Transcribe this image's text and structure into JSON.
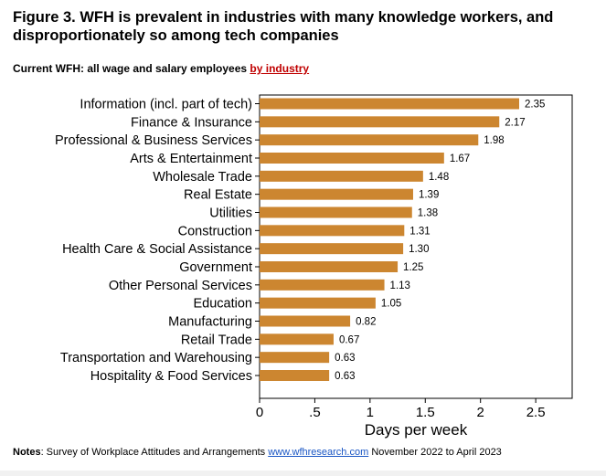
{
  "header": {
    "title": "Figure 3. WFH is prevalent in industries with many knowledge workers, and disproportionately so among tech companies",
    "subtitle_prefix": "Current WFH: all wage and salary employees ",
    "subtitle_link": "by industry"
  },
  "notes": {
    "label": "Notes",
    "text_before": ": Survey of Workplace Attitudes and Arrangements ",
    "link": "www.wfhresearch.com",
    "text_after": " November 2022 to April 2023"
  },
  "colors": {
    "bar": "#cc8630",
    "subtitle_link": "#c00000",
    "notes_link": "#1a56c4"
  },
  "chart_data": {
    "type": "bar",
    "orientation": "horizontal",
    "categories": [
      "Information (incl. part of tech)",
      "Finance & Insurance",
      "Professional & Business Services",
      "Arts & Entertainment",
      "Wholesale Trade",
      "Real Estate",
      "Utilities",
      "Construction",
      "Health Care & Social Assistance",
      "Government",
      "Other Personal Services",
      "Education",
      "Manufacturing",
      "Retail Trade",
      "Transportation and Warehousing",
      "Hospitality & Food Services"
    ],
    "values": [
      2.35,
      2.17,
      1.98,
      1.67,
      1.48,
      1.39,
      1.38,
      1.31,
      1.3,
      1.25,
      1.13,
      1.05,
      0.82,
      0.67,
      0.63,
      0.63
    ],
    "value_labels": [
      "2.35",
      "2.17",
      "1.98",
      "1.67",
      "1.48",
      "1.39",
      "1.38",
      "1.31",
      "1.30",
      "1.25",
      "1.13",
      "1.05",
      "0.82",
      "0.67",
      "0.63",
      "0.63"
    ],
    "xlabel": "Days per week",
    "xlim": [
      0,
      2.83
    ],
    "xticks": [
      0,
      0.5,
      1,
      1.5,
      2,
      2.5
    ],
    "xtick_labels": [
      "0",
      ".5",
      "1",
      "1.5",
      "2",
      "2.5"
    ],
    "grid": false
  }
}
